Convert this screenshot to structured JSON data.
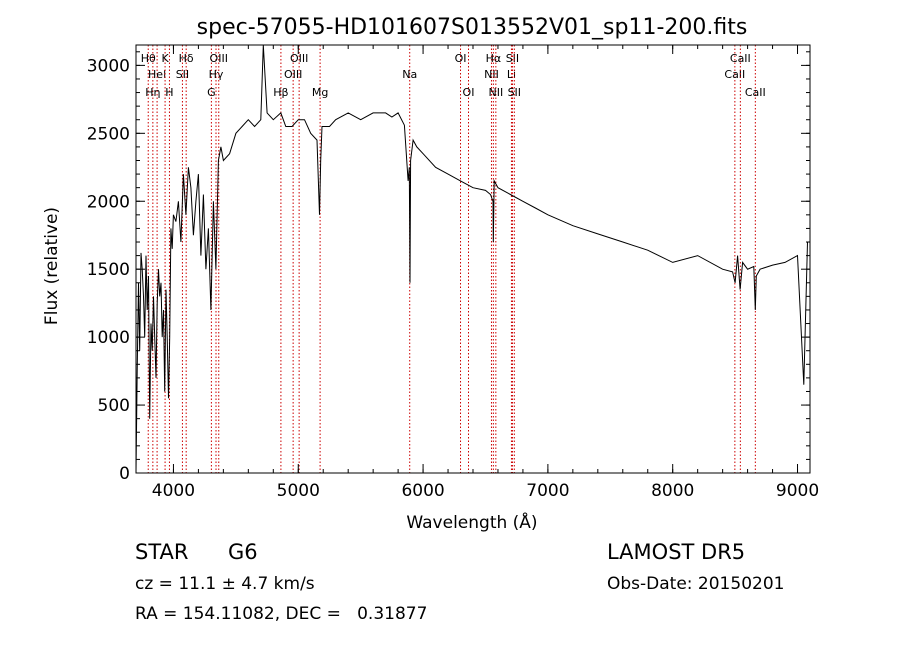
{
  "chart_data": {
    "type": "line",
    "title": "spec-57055-HD101607S013552V01_sp11-200.fits",
    "xlabel": "Wavelength (Å)",
    "ylabel": "Flux (relative)",
    "xlim": [
      3700,
      9100
    ],
    "ylim": [
      0,
      3150
    ],
    "x_ticks": [
      4000,
      5000,
      6000,
      7000,
      8000,
      9000
    ],
    "y_ticks": [
      0,
      500,
      1000,
      1500,
      2000,
      2500,
      3000
    ],
    "grid": false,
    "series": [
      {
        "x": [
          3700,
          3710,
          3720,
          3730,
          3740,
          3750,
          3760,
          3770,
          3780,
          3790,
          3800,
          3810,
          3820,
          3830,
          3840,
          3850,
          3860,
          3870,
          3880,
          3890,
          3900,
          3910,
          3920,
          3930,
          3940,
          3950,
          3960,
          3970,
          3980,
          3990,
          4000,
          4020,
          4040,
          4060,
          4080,
          4100,
          4120,
          4140,
          4160,
          4180,
          4200,
          4220,
          4240,
          4260,
          4280,
          4300,
          4320,
          4340,
          4360,
          4380,
          4400,
          4450,
          4500,
          4550,
          4600,
          4650,
          4700,
          4720,
          4750,
          4800,
          4860,
          4900,
          4950,
          5000,
          5050,
          5100,
          5150,
          5170,
          5180,
          5190,
          5250,
          5300,
          5400,
          5500,
          5600,
          5700,
          5750,
          5800,
          5850,
          5880,
          5890,
          5895,
          5900,
          5920,
          5950,
          6000,
          6100,
          6200,
          6300,
          6400,
          6500,
          6540,
          6560,
          6563,
          6570,
          6600,
          6700,
          6800,
          6900,
          7000,
          7200,
          7400,
          7600,
          7800,
          8000,
          8200,
          8400,
          8480,
          8500,
          8520,
          8540,
          8560,
          8600,
          8650,
          8662,
          8670,
          8700,
          8800,
          8900,
          9000,
          9050,
          9080
        ],
        "y": [
          0,
          750,
          1400,
          900,
          1620,
          1500,
          1300,
          1000,
          1600,
          1200,
          1450,
          400,
          1100,
          900,
          1300,
          1000,
          700,
          1250,
          1500,
          1300,
          1400,
          1000,
          1200,
          600,
          1350,
          1000,
          550,
          1000,
          1800,
          1650,
          1900,
          1850,
          2000,
          1700,
          2200,
          1900,
          2250,
          2100,
          1750,
          2000,
          2200,
          1600,
          2050,
          1500,
          1800,
          1200,
          2000,
          1500,
          2300,
          2400,
          2300,
          2350,
          2500,
          2550,
          2600,
          2550,
          2600,
          3150,
          2650,
          2600,
          2650,
          2550,
          2550,
          2600,
          2600,
          2500,
          2450,
          1900,
          2300,
          2550,
          2550,
          2600,
          2650,
          2600,
          2650,
          2650,
          2620,
          2650,
          2560,
          2150,
          2250,
          1400,
          2300,
          2450,
          2400,
          2350,
          2250,
          2200,
          2150,
          2100,
          2080,
          2050,
          2000,
          1700,
          2150,
          2100,
          2050,
          2000,
          1950,
          1900,
          1820,
          1760,
          1700,
          1640,
          1550,
          1600,
          1500,
          1480,
          1400,
          1600,
          1350,
          1550,
          1500,
          1520,
          1200,
          1450,
          1500,
          1530,
          1550,
          1600,
          650,
          1700
        ]
      }
    ],
    "line_markers": [
      {
        "wavelength": 3798,
        "label": "Hθ",
        "row": 1
      },
      {
        "wavelength": 3835,
        "label": "Hη",
        "row": 3
      },
      {
        "wavelength": 3869,
        "label": "Hel",
        "row": 2
      },
      {
        "wavelength": 3933,
        "label": "K",
        "row": 1
      },
      {
        "wavelength": 3968,
        "label": "H",
        "row": 3
      },
      {
        "wavelength": 4072,
        "label": "SII",
        "row": 2
      },
      {
        "wavelength": 4102,
        "label": "Hδ",
        "row": 1
      },
      {
        "wavelength": 4304,
        "label": "G",
        "row": 3
      },
      {
        "wavelength": 4341,
        "label": "Hγ",
        "row": 2
      },
      {
        "wavelength": 4363,
        "label": "OIII",
        "row": 1
      },
      {
        "wavelength": 4861,
        "label": "Hβ",
        "row": 3
      },
      {
        "wavelength": 4959,
        "label": "OIII",
        "row": 2
      },
      {
        "wavelength": 5007,
        "label": "OIII",
        "row": 1
      },
      {
        "wavelength": 5175,
        "label": "Mg",
        "row": 3
      },
      {
        "wavelength": 5893,
        "label": "Na",
        "row": 2
      },
      {
        "wavelength": 6300,
        "label": "OI",
        "row": 1
      },
      {
        "wavelength": 6364,
        "label": "OI",
        "row": 3
      },
      {
        "wavelength": 6548,
        "label": "NII",
        "row": 2
      },
      {
        "wavelength": 6563,
        "label": "Hα",
        "row": 1
      },
      {
        "wavelength": 6583,
        "label": "NII",
        "row": 3
      },
      {
        "wavelength": 6708,
        "label": "Li",
        "row": 2
      },
      {
        "wavelength": 6716,
        "label": "SII",
        "row": 1
      },
      {
        "wavelength": 6731,
        "label": "SII",
        "row": 3
      },
      {
        "wavelength": 8498,
        "label": "CaII",
        "row": 2
      },
      {
        "wavelength": 8542,
        "label": "CaII",
        "row": 1
      },
      {
        "wavelength": 8662,
        "label": "CaII",
        "row": 3
      }
    ],
    "colors": {
      "line": "#000000",
      "marker": "#cc0000"
    }
  },
  "info": {
    "class": "STAR",
    "subclass": "G6",
    "survey": "LAMOST DR5",
    "cz": "cz = 11.1 ± 4.7 km/s",
    "obs_date": "Obs-Date: 20150201",
    "radec": "RA = 154.11082, DEC =   0.31877"
  }
}
